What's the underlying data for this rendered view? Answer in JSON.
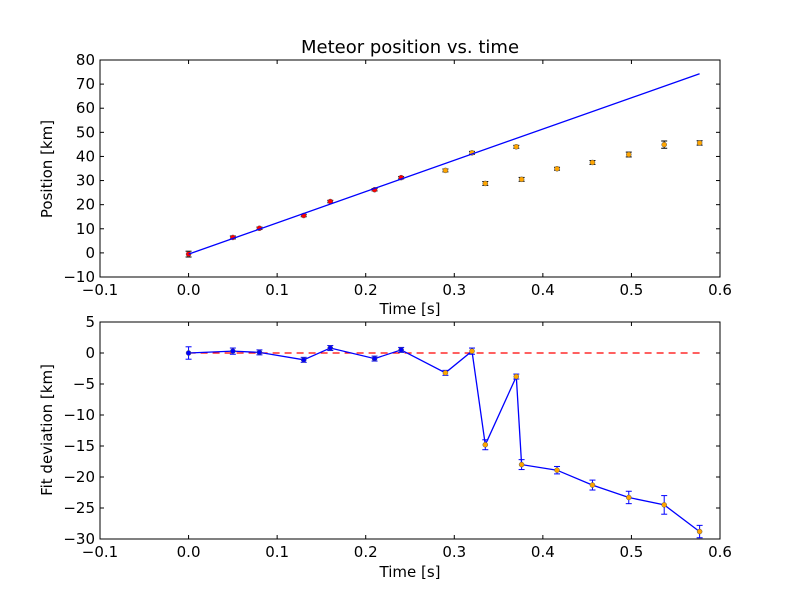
{
  "chart_data": [
    {
      "type": "scatter",
      "title": "Meteor position vs. time",
      "xlabel": "Time [s]",
      "ylabel": "Position [km]",
      "xlim": [
        -0.1,
        0.6
      ],
      "ylim": [
        -10,
        80
      ],
      "xticks": [
        "-0.1",
        "0.0",
        "0.1",
        "0.2",
        "0.3",
        "0.4",
        "0.5",
        "0.6"
      ],
      "yticks": [
        "-10",
        "0",
        "10",
        "20",
        "30",
        "40",
        "50",
        "60",
        "70",
        "80"
      ],
      "grid": false,
      "series": [
        {
          "kind": "errorbar",
          "color": "#ff0000",
          "points": [
            {
              "x": 0.0,
              "y": -0.5,
              "err": 1.2
            },
            {
              "x": 0.05,
              "y": 6.4,
              "err": 0.6
            },
            {
              "x": 0.08,
              "y": 10.2,
              "err": 0.5
            },
            {
              "x": 0.13,
              "y": 15.5,
              "err": 0.5
            },
            {
              "x": 0.16,
              "y": 21.3,
              "err": 0.5
            },
            {
              "x": 0.21,
              "y": 26.2,
              "err": 0.5
            },
            {
              "x": 0.24,
              "y": 31.2,
              "err": 0.5
            }
          ]
        },
        {
          "kind": "errorbar",
          "color": "#ffa500",
          "points": [
            {
              "x": 0.29,
              "y": 34.2,
              "err": 0.6
            },
            {
              "x": 0.32,
              "y": 41.5,
              "err": 0.6
            },
            {
              "x": 0.335,
              "y": 28.8,
              "err": 0.8
            },
            {
              "x": 0.37,
              "y": 44.0,
              "err": 0.6
            },
            {
              "x": 0.376,
              "y": 30.5,
              "err": 0.8
            },
            {
              "x": 0.416,
              "y": 34.9,
              "err": 0.6
            },
            {
              "x": 0.456,
              "y": 37.5,
              "err": 0.8
            },
            {
              "x": 0.497,
              "y": 40.8,
              "err": 1.0
            },
            {
              "x": 0.537,
              "y": 44.9,
              "err": 1.5
            },
            {
              "x": 0.577,
              "y": 45.6,
              "err": 0.9
            }
          ]
        },
        {
          "kind": "line",
          "color": "#0000ff",
          "points": [
            {
              "x": 0.0,
              "y": -0.5
            },
            {
              "x": 0.577,
              "y": 74.3
            }
          ]
        }
      ]
    },
    {
      "type": "line",
      "title": "",
      "xlabel": "Time [s]",
      "ylabel": "Fit deviation [km]",
      "xlim": [
        -0.1,
        0.6
      ],
      "ylim": [
        -30,
        5
      ],
      "xticks": [
        "-0.1",
        "0.0",
        "0.1",
        "0.2",
        "0.3",
        "0.4",
        "0.5",
        "0.6"
      ],
      "yticks": [
        "-30",
        "-25",
        "-20",
        "-15",
        "-10",
        "-5",
        "0",
        "5"
      ],
      "grid": false,
      "series": [
        {
          "kind": "dashed-line",
          "color": "#ff0000",
          "points": [
            {
              "x": 0.0,
              "y": 0.0
            },
            {
              "x": 0.577,
              "y": 0.0
            }
          ]
        },
        {
          "kind": "line-errorbar",
          "color": "#0000ff",
          "points": [
            {
              "x": 0.0,
              "y": 0.0,
              "err": 1.0,
              "marker": "#0000ff"
            },
            {
              "x": 0.05,
              "y": 0.3,
              "err": 0.5,
              "marker": "#0000ff"
            },
            {
              "x": 0.08,
              "y": 0.1,
              "err": 0.4,
              "marker": "#0000ff"
            },
            {
              "x": 0.13,
              "y": -1.1,
              "err": 0.4,
              "marker": "#0000ff"
            },
            {
              "x": 0.16,
              "y": 0.8,
              "err": 0.4,
              "marker": "#0000ff"
            },
            {
              "x": 0.21,
              "y": -0.9,
              "err": 0.4,
              "marker": "#0000ff"
            },
            {
              "x": 0.24,
              "y": 0.5,
              "err": 0.4,
              "marker": "#0000ff"
            },
            {
              "x": 0.29,
              "y": -3.2,
              "err": 0.4,
              "marker": "#ffa500"
            },
            {
              "x": 0.32,
              "y": 0.3,
              "err": 0.5,
              "marker": "#ffa500"
            },
            {
              "x": 0.335,
              "y": -14.8,
              "err": 0.8,
              "marker": "#ffa500"
            },
            {
              "x": 0.37,
              "y": -3.8,
              "err": 0.4,
              "marker": "#ffa500"
            },
            {
              "x": 0.376,
              "y": -18.0,
              "err": 0.8,
              "marker": "#ffa500"
            },
            {
              "x": 0.416,
              "y": -18.9,
              "err": 0.6,
              "marker": "#ffa500"
            },
            {
              "x": 0.456,
              "y": -21.3,
              "err": 0.8,
              "marker": "#ffa500"
            },
            {
              "x": 0.497,
              "y": -23.3,
              "err": 1.0,
              "marker": "#ffa500"
            },
            {
              "x": 0.537,
              "y": -24.5,
              "err": 1.5,
              "marker": "#ffa500"
            },
            {
              "x": 0.577,
              "y": -28.8,
              "err": 1.0,
              "marker": "#ffa500"
            }
          ]
        }
      ]
    }
  ]
}
